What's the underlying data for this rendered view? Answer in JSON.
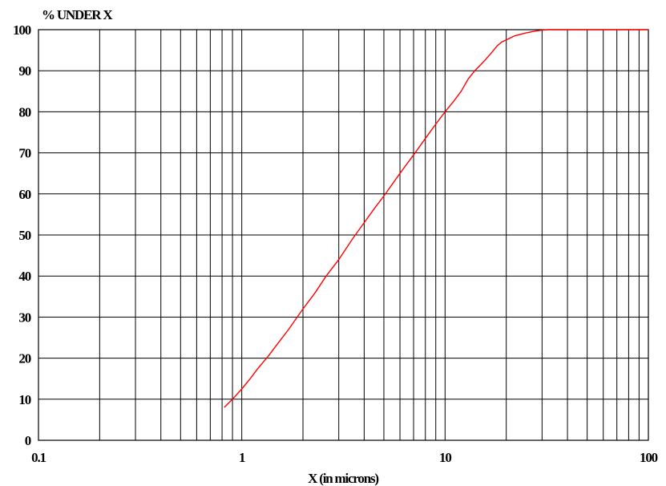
{
  "chart_data": {
    "type": "line",
    "title": "",
    "xlabel": "X (in microns)",
    "ylabel": "% UNDER X",
    "x_scale": "log",
    "xlim": [
      0.1,
      100
    ],
    "ylim": [
      0,
      100
    ],
    "x_tick_labels": [
      "0.1",
      "1",
      "10",
      "100"
    ],
    "y_tick_labels": [
      "0",
      "10",
      "20",
      "30",
      "40",
      "50",
      "60",
      "70",
      "80",
      "90",
      "100"
    ],
    "grid": true,
    "legend": "none",
    "line_color": "#ff0000",
    "series": [
      {
        "x": [
          0.82,
          0.9,
          1.0,
          1.1,
          1.2,
          1.35,
          1.5,
          1.7,
          2.0,
          2.3,
          2.6,
          3.0,
          3.5,
          4.0,
          4.5,
          5.0,
          6.0,
          7.0,
          8.0,
          9.0,
          10.0,
          11.0,
          12.0,
          13.0,
          14.0,
          15.0,
          16.0,
          17.0,
          18.0,
          19.0,
          20.0,
          22.0,
          25.0,
          28.0,
          30.0,
          32.0,
          40.0,
          60.0,
          100.0
        ],
        "y": [
          8,
          10,
          12.5,
          15,
          17.5,
          20.5,
          23.5,
          27,
          32,
          36,
          40,
          44,
          49,
          53,
          56.5,
          59.5,
          65,
          69.5,
          73.5,
          77,
          80,
          82.5,
          85,
          88,
          90,
          91.5,
          93,
          94.5,
          96,
          97,
          97.5,
          98.5,
          99.2,
          99.7,
          99.9,
          100,
          100,
          100,
          100
        ]
      }
    ]
  }
}
